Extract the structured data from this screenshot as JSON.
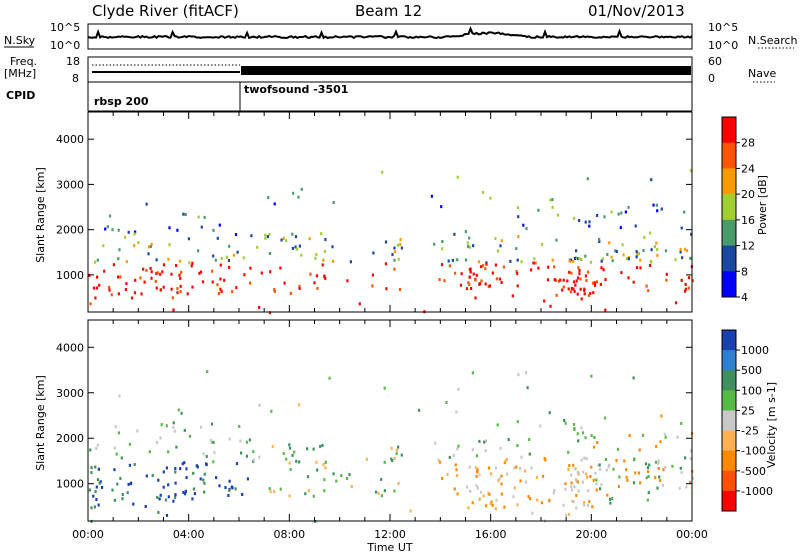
{
  "header": {
    "station": "Clyde River (fitACF)",
    "beam": "Beam 12",
    "date": "01/Nov/2013"
  },
  "panels": {
    "nsky_label": "N.Sky",
    "nsky_ticks": [
      "10^5",
      "10^0"
    ],
    "nsearch_label": "N.Search",
    "nsearch_ticks": [
      "10^5",
      "10^0"
    ],
    "freq_label_1": "Freq.",
    "freq_label_2": "[MHz]",
    "freq_ticks": [
      "18",
      "8"
    ],
    "nave_label": "Nave",
    "nave_ticks": [
      "60",
      "0"
    ],
    "cpid_label": "CPID",
    "cpid_segments": [
      {
        "label": "rbsp 200",
        "start_hour": 0
      },
      {
        "label": "twofsound -3501",
        "start_hour": 6
      }
    ]
  },
  "chart_data": [
    {
      "type": "heatmap",
      "title": "",
      "xlabel": "Time UT",
      "ylabel": "Slant Range [km]",
      "x_ticks": [
        "00:00",
        "04:00",
        "08:00",
        "12:00",
        "16:00",
        "20:00",
        "00:00"
      ],
      "xlim_hours": [
        0,
        24
      ],
      "ylim": [
        180,
        4600
      ],
      "y_ticks": [
        1000,
        2000,
        3000,
        4000
      ],
      "colorbar": {
        "label": "Power [dB]",
        "ticks": [
          "28",
          "24",
          "20",
          "16",
          "12",
          "8",
          "4"
        ],
        "colors": [
          "#ff0000",
          "#ff5500",
          "#ff9900",
          "#a0d030",
          "#4a9a6a",
          "#1a47a0",
          "#0000ff"
        ]
      }
    },
    {
      "type": "heatmap",
      "title": "",
      "xlabel": "Time UT",
      "ylabel": "Slant Range [km]",
      "x_ticks": [
        "00:00",
        "04:00",
        "08:00",
        "12:00",
        "16:00",
        "20:00",
        "00:00"
      ],
      "xlim_hours": [
        0,
        24
      ],
      "ylim": [
        180,
        4600
      ],
      "y_ticks": [
        1000,
        2000,
        3000,
        4000
      ],
      "colorbar": {
        "label": "Velocity [m s-1]",
        "ticks": [
          "1000",
          "500",
          "100",
          "25",
          "-25",
          "-100",
          "-500",
          "-1000"
        ],
        "colors": [
          "#1a3fb0",
          "#2e7fd0",
          "#3f8f5f",
          "#55bb44",
          "#c8c8c8",
          "#ffb050",
          "#ff8800",
          "#ff5000",
          "#ff0000"
        ]
      }
    }
  ],
  "axis_label": "Time UT"
}
